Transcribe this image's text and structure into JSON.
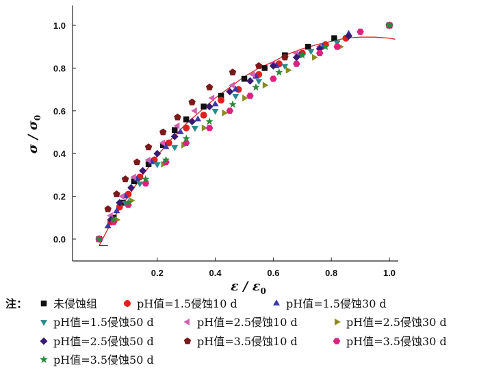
{
  "chart_data": {
    "type": "scatter",
    "title": "",
    "xlabel": "ε / ε",
    "xlabel_sub": "0",
    "ylabel": "σ / σ",
    "ylabel_sub": "0",
    "xlim": [
      -0.05,
      1.05
    ],
    "ylim": [
      -0.1,
      1.08
    ],
    "x_ticks": [
      0.2,
      0.4,
      0.6,
      0.8,
      1.0
    ],
    "x_tick_labels": [
      "0.2",
      "0.4",
      "0.6",
      "0.8",
      "1.0"
    ],
    "y_ticks": [
      0.0,
      0.2,
      0.4,
      0.6,
      0.8,
      1.0
    ],
    "y_tick_labels": [
      "0.0",
      "0.2",
      "0.4",
      "0.6",
      "0.8",
      "1.0"
    ],
    "grid": false,
    "legend_position": "bottom",
    "legend_prefix": "注：",
    "fit_curve": {
      "color": "#e02020",
      "points": [
        [
          0.0,
          -0.03
        ],
        [
          0.05,
          0.1
        ],
        [
          0.1,
          0.2
        ],
        [
          0.15,
          0.3
        ],
        [
          0.2,
          0.39
        ],
        [
          0.25,
          0.47
        ],
        [
          0.3,
          0.54
        ],
        [
          0.35,
          0.6
        ],
        [
          0.4,
          0.66
        ],
        [
          0.45,
          0.71
        ],
        [
          0.5,
          0.76
        ],
        [
          0.55,
          0.8
        ],
        [
          0.6,
          0.83
        ],
        [
          0.65,
          0.865
        ],
        [
          0.7,
          0.89
        ],
        [
          0.75,
          0.91
        ],
        [
          0.8,
          0.925
        ],
        [
          0.85,
          0.94
        ],
        [
          0.9,
          0.945
        ],
        [
          0.95,
          0.945
        ],
        [
          1.0,
          0.94
        ],
        [
          1.02,
          0.935
        ]
      ]
    },
    "series": [
      {
        "name": "未侵蚀组",
        "marker": "square",
        "color": "#111111",
        "x": [
          0.0,
          0.05,
          0.08,
          0.12,
          0.17,
          0.22,
          0.26,
          0.3,
          0.36,
          0.42,
          0.5,
          0.57,
          0.64,
          0.72,
          0.81,
          1.0
        ],
        "y": [
          0.0,
          0.1,
          0.17,
          0.27,
          0.35,
          0.44,
          0.51,
          0.56,
          0.62,
          0.67,
          0.75,
          0.8,
          0.86,
          0.9,
          0.94,
          1.0
        ]
      },
      {
        "name": "pH值=1.5侵蚀10 d",
        "marker": "circle",
        "color": "#e02020",
        "x": [
          0.0,
          0.04,
          0.07,
          0.1,
          0.14,
          0.19,
          0.24,
          0.3,
          0.36,
          0.42,
          0.48,
          0.55,
          0.62,
          0.7,
          0.78,
          0.85,
          1.0
        ],
        "y": [
          0.0,
          0.08,
          0.15,
          0.21,
          0.29,
          0.37,
          0.45,
          0.52,
          0.58,
          0.65,
          0.7,
          0.77,
          0.82,
          0.87,
          0.91,
          0.94,
          1.0
        ]
      },
      {
        "name": "pH值=1.5侵蚀30 d",
        "marker": "triangle-up",
        "color": "#3a3aa8",
        "x": [
          0.0,
          0.03,
          0.06,
          0.09,
          0.13,
          0.18,
          0.23,
          0.28,
          0.34,
          0.4,
          0.47,
          0.54,
          0.61,
          0.69,
          0.77,
          0.86,
          1.0
        ],
        "y": [
          0.0,
          0.06,
          0.13,
          0.2,
          0.28,
          0.36,
          0.43,
          0.5,
          0.56,
          0.63,
          0.7,
          0.76,
          0.81,
          0.86,
          0.9,
          0.96,
          1.0
        ]
      },
      {
        "name": "pH值=1.5侵蚀50 d",
        "marker": "triangle-down",
        "color": "#2a8a8a",
        "x": [
          0.0,
          0.05,
          0.09,
          0.14,
          0.2,
          0.26,
          0.33,
          0.4,
          0.47,
          0.55,
          0.64,
          0.73,
          0.82,
          1.0
        ],
        "y": [
          0.0,
          0.08,
          0.17,
          0.26,
          0.35,
          0.43,
          0.52,
          0.6,
          0.67,
          0.74,
          0.81,
          0.88,
          0.92,
          1.0
        ]
      },
      {
        "name": "pH值=2.5侵蚀10 d",
        "marker": "triangle-left",
        "color": "#d060b0",
        "x": [
          0.0,
          0.04,
          0.08,
          0.12,
          0.17,
          0.22,
          0.27,
          0.33,
          0.39,
          0.46,
          0.53,
          0.6,
          0.68,
          0.76,
          1.0
        ],
        "y": [
          0.0,
          0.11,
          0.2,
          0.29,
          0.37,
          0.45,
          0.53,
          0.6,
          0.66,
          0.72,
          0.77,
          0.82,
          0.87,
          0.9,
          1.0
        ]
      },
      {
        "name": "pH值=2.5侵蚀30 d",
        "marker": "triangle-right",
        "color": "#8a8a20",
        "x": [
          0.0,
          0.06,
          0.11,
          0.16,
          0.22,
          0.29,
          0.36,
          0.43,
          0.5,
          0.57,
          0.65,
          0.74,
          0.83,
          1.0
        ],
        "y": [
          0.0,
          0.09,
          0.18,
          0.27,
          0.35,
          0.44,
          0.52,
          0.59,
          0.66,
          0.72,
          0.79,
          0.85,
          0.9,
          1.0
        ]
      },
      {
        "name": "pH值=2.5侵蚀50 d",
        "marker": "diamond",
        "color": "#3a1a70",
        "x": [
          0.0,
          0.04,
          0.07,
          0.11,
          0.15,
          0.2,
          0.26,
          0.32,
          0.38,
          0.45,
          0.52,
          0.6,
          0.68,
          0.76,
          0.86,
          1.0
        ],
        "y": [
          0.0,
          0.09,
          0.17,
          0.24,
          0.32,
          0.4,
          0.48,
          0.55,
          0.62,
          0.69,
          0.74,
          0.81,
          0.85,
          0.89,
          0.95,
          1.0
        ]
      },
      {
        "name": "pH值=3.5侵蚀10 d",
        "marker": "pentagon",
        "color": "#7a1a1a",
        "x": [
          0.0,
          0.03,
          0.06,
          0.09,
          0.13,
          0.17,
          0.22,
          0.27,
          0.32,
          0.38,
          0.46,
          0.55,
          0.64,
          1.0
        ],
        "y": [
          0.0,
          0.14,
          0.21,
          0.28,
          0.36,
          0.43,
          0.5,
          0.57,
          0.64,
          0.71,
          0.78,
          0.81,
          0.85,
          1.0
        ]
      },
      {
        "name": "pH值=3.5侵蚀30 d",
        "marker": "hexagon",
        "color": "#e02080",
        "x": [
          0.0,
          0.05,
          0.1,
          0.16,
          0.23,
          0.3,
          0.38,
          0.45,
          0.52,
          0.6,
          0.68,
          0.76,
          0.82,
          0.9,
          1.0
        ],
        "y": [
          0.0,
          0.08,
          0.16,
          0.26,
          0.36,
          0.45,
          0.52,
          0.6,
          0.67,
          0.75,
          0.82,
          0.87,
          0.9,
          0.97,
          1.0
        ]
      },
      {
        "name": "pH值=3.5侵蚀50 d",
        "marker": "star",
        "color": "#2a8a3a",
        "x": [
          0.0,
          0.05,
          0.1,
          0.16,
          0.23,
          0.3,
          0.38,
          0.46,
          0.54,
          0.62,
          0.7,
          0.78,
          1.0
        ],
        "y": [
          0.0,
          0.09,
          0.17,
          0.28,
          0.37,
          0.47,
          0.55,
          0.63,
          0.71,
          0.78,
          0.86,
          0.9,
          1.0
        ]
      }
    ]
  }
}
